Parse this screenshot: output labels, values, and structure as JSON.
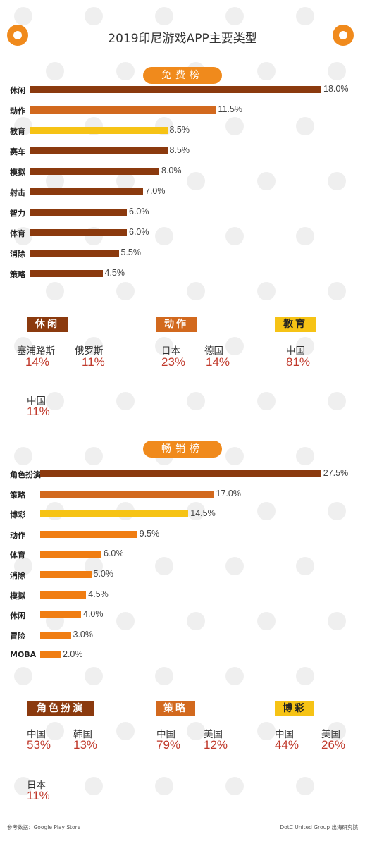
{
  "title": "2019印尼游戏APP主要类型",
  "sections": [
    {
      "pill": "免费榜",
      "chart_data": {
        "type": "bar",
        "categories": [
          "休闲",
          "动作",
          "教育",
          "赛车",
          "模拟",
          "射击",
          "智力",
          "体育",
          "消除",
          "策略"
        ],
        "values": [
          18.0,
          11.5,
          8.5,
          8.5,
          8.0,
          7.0,
          6.0,
          6.0,
          5.5,
          4.5
        ],
        "value_labels": [
          "18.0%",
          "11.5%",
          "8.5%",
          "8.5%",
          "8.0%",
          "7.0%",
          "6.0%",
          "6.0%",
          "5.5%",
          "4.5%"
        ],
        "colors": [
          "#8b3a0e",
          "#d2691e",
          "#f6c315",
          "#8b3a0e",
          "#8b3a0e",
          "#8b3a0e",
          "#8b3a0e",
          "#8b3a0e",
          "#8b3a0e",
          "#8b3a0e"
        ]
      },
      "tags": [
        {
          "label": "休闲",
          "color": "#8b3a0e",
          "text": "#ffffff"
        },
        {
          "label": "动作",
          "color": "#d2691e",
          "text": "#ffffff"
        },
        {
          "label": "教育",
          "color": "#f6c315",
          "text": "#222222"
        }
      ],
      "breakdown": [
        {
          "name": "塞浦路斯",
          "pct": "14%"
        },
        {
          "name": "俄罗斯",
          "pct": "11%"
        },
        {
          "name": "日本",
          "pct": "23%"
        },
        {
          "name": "德国",
          "pct": "14%"
        },
        {
          "name": "中国",
          "pct": "81%"
        },
        {
          "name": "中国",
          "pct": "11%"
        }
      ]
    },
    {
      "pill": "畅销榜",
      "chart_data": {
        "type": "bar",
        "categories": [
          "角色扮演",
          "策略",
          "博彩",
          "动作",
          "体育",
          "消除",
          "模拟",
          "休闲",
          "冒险",
          "MOBA"
        ],
        "values": [
          27.5,
          17.0,
          14.5,
          9.5,
          6.0,
          5.0,
          4.5,
          4.0,
          3.0,
          2.0
        ],
        "value_labels": [
          "27.5%",
          "17.0%",
          "14.5%",
          "9.5%",
          "6.0%",
          "5.0%",
          "4.5%",
          "4.0%",
          "3.0%",
          "2.0%"
        ],
        "colors": [
          "#8b3a0e",
          "#d2691e",
          "#f6c315",
          "#f07d12",
          "#f07d12",
          "#f07d12",
          "#f07d12",
          "#f07d12",
          "#f07d12",
          "#f07d12"
        ]
      },
      "tags": [
        {
          "label": "角色扮演",
          "color": "#8b3a0e",
          "text": "#ffffff"
        },
        {
          "label": "策略",
          "color": "#d2691e",
          "text": "#ffffff"
        },
        {
          "label": "博彩",
          "color": "#f6c315",
          "text": "#222222"
        }
      ],
      "breakdown": [
        {
          "name": "中国",
          "pct": "53%"
        },
        {
          "name": "韩国",
          "pct": "13%"
        },
        {
          "name": "中国",
          "pct": "79%"
        },
        {
          "name": "美国",
          "pct": "12%"
        },
        {
          "name": "中国",
          "pct": "44%"
        },
        {
          "name": "美国",
          "pct": "26%"
        },
        {
          "name": "日本",
          "pct": "11%"
        }
      ]
    }
  ],
  "footer": {
    "left": "参考数据：Google Play Store",
    "right": "DotC United Group 出海研究院"
  }
}
